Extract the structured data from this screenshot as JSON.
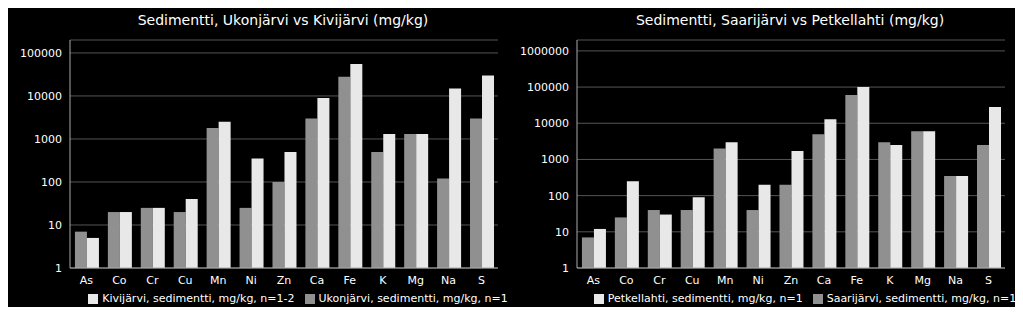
{
  "chart_data": [
    {
      "type": "bar",
      "title": "Sedimentti, Ukonjärvi vs Kivijärvi (mg/kg)",
      "categories": [
        "As",
        "Co",
        "Cr",
        "Cu",
        "Mn",
        "Ni",
        "Zn",
        "Ca",
        "Fe",
        "K",
        "Mg",
        "Na",
        "S"
      ],
      "series": [
        {
          "name": "Ukonjärvi, sedimentti, mg/kg, n=1",
          "color": "#909090",
          "values": [
            7,
            20,
            25,
            20,
            1800,
            25,
            100,
            3000,
            28000,
            500,
            1300,
            120,
            3000
          ]
        },
        {
          "name": "Kivijärvi, sedimentti, mg/kg, n=1-2",
          "color": "#e8e8e8",
          "values": [
            5,
            20,
            25,
            40,
            2500,
            350,
            500,
            9000,
            55000,
            1300,
            1300,
            15000,
            30000
          ]
        }
      ],
      "ylim": [
        1,
        200000
      ],
      "yticks": [
        1,
        10,
        100,
        1000,
        10000,
        100000
      ],
      "log": "y",
      "grid": true,
      "legend": "bottom"
    },
    {
      "type": "bar",
      "title": "Sedimentti, Saarijärvi vs Petkellahti (mg/kg)",
      "categories": [
        "As",
        "Co",
        "Cr",
        "Cu",
        "Mn",
        "Ni",
        "Zn",
        "Ca",
        "Fe",
        "K",
        "Mg",
        "Na",
        "S"
      ],
      "series": [
        {
          "name": "Saarijärvi, sedimentti, mg/kg, n=1",
          "color": "#909090",
          "values": [
            7,
            25,
            40,
            40,
            2000,
            40,
            200,
            5000,
            60000,
            3000,
            6000,
            350,
            2500
          ]
        },
        {
          "name": "Petkellahti, sedimentti, mg/kg, n=1",
          "color": "#e8e8e8",
          "values": [
            12,
            250,
            30,
            90,
            3000,
            200,
            1700,
            13000,
            100000,
            2500,
            6000,
            350,
            28000
          ]
        }
      ],
      "ylim": [
        1,
        2000000
      ],
      "yticks": [
        1,
        10,
        100,
        1000,
        10000,
        100000,
        1000000
      ],
      "log": "y",
      "grid": true,
      "legend": "bottom"
    }
  ]
}
